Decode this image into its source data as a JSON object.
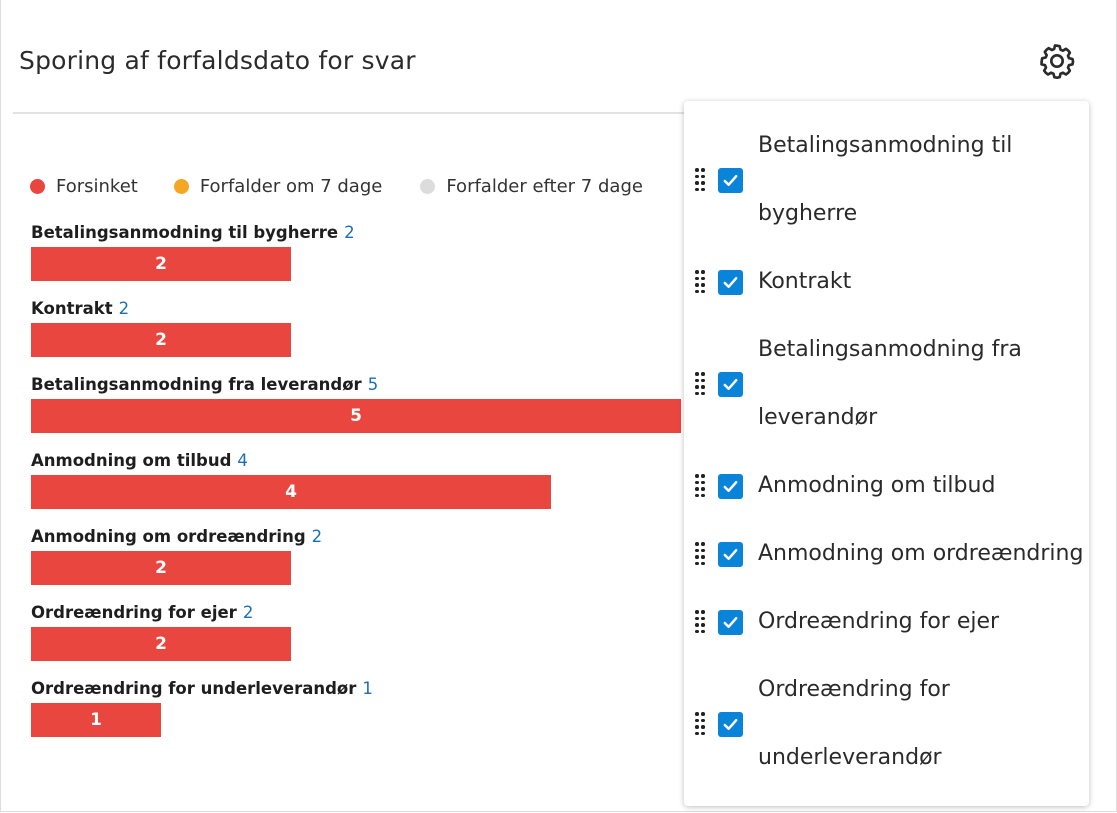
{
  "widget": {
    "title": "Sporing af forfaldsdato for svar"
  },
  "icons": {
    "settings": "gear-icon",
    "drag": "drag-handle-icon",
    "check": "checkmark-icon"
  },
  "colors": {
    "overdue": "#e9463f",
    "due_7_days": "#f5a623",
    "due_after_7_days": "#dcdcdc",
    "count_text": "#1a6fb5",
    "checkbox": "#0a84d8"
  },
  "chart_data": {
    "type": "bar",
    "orientation": "horizontal",
    "stacked": true,
    "categories": [
      "Betalingsanmodning til bygherre",
      "Kontrakt",
      "Betalingsanmodning fra leverandør",
      "Anmodning om tilbud",
      "Anmodning om ordreændring",
      "Ordreændring for ejer",
      "Ordreændring for underleverandør"
    ],
    "totals": [
      "2",
      "2",
      "5",
      "4",
      "2",
      "2",
      "1"
    ],
    "series": [
      {
        "name": "Forsinket",
        "color": "#e9463f",
        "values": [
          2,
          2,
          5,
          4,
          2,
          2,
          1
        ]
      },
      {
        "name": "Forfalder om 7 dage",
        "color": "#f5a623",
        "values": [
          0,
          0,
          0,
          0,
          0,
          0,
          0
        ]
      },
      {
        "name": "Forfalder efter 7 dage",
        "color": "#dcdcdc",
        "values": [
          0,
          0,
          0,
          0,
          0,
          0,
          0
        ]
      }
    ],
    "bar_labels": [
      "2",
      "2",
      "5",
      "4",
      "2",
      "2",
      "1"
    ],
    "legend_position": "top-left",
    "title": "",
    "xlabel": "",
    "ylabel": ""
  },
  "settings_panel": {
    "items": [
      {
        "lines": [
          "Betalingsanmodning til",
          "bygherre"
        ],
        "checked": true
      },
      {
        "lines": [
          "Kontrakt"
        ],
        "checked": true
      },
      {
        "lines": [
          "Betalingsanmodning fra",
          "leverandør"
        ],
        "checked": true
      },
      {
        "lines": [
          "Anmodning om tilbud"
        ],
        "checked": true
      },
      {
        "lines": [
          "Anmodning om ordreændring"
        ],
        "checked": true
      },
      {
        "lines": [
          "Ordreændring for ejer"
        ],
        "checked": true
      },
      {
        "lines": [
          "Ordreændring for",
          "underleverandør"
        ],
        "checked": true
      }
    ]
  }
}
